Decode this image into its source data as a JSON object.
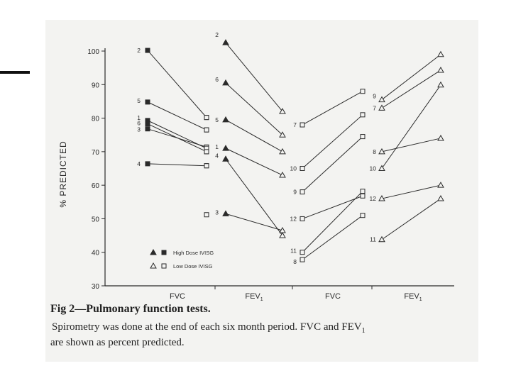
{
  "chart_data": {
    "type": "line",
    "ylabel": "% PREDICTED",
    "ylim": [
      30,
      100
    ],
    "yticks": [
      30,
      40,
      50,
      60,
      70,
      80,
      90,
      100
    ],
    "groups": [
      {
        "key": "fvc_high",
        "label": "FVC",
        "marker": "square",
        "open": false,
        "series": [
          {
            "name": "2",
            "values": [
              100.2,
              80.2
            ]
          },
          {
            "name": "5",
            "values": [
              84.8,
              76.5
            ]
          },
          {
            "name": "1",
            "values": [
              79.3,
              71.0
            ]
          },
          {
            "name": "6",
            "values": [
              78.3,
              70.0
            ]
          },
          {
            "name": "3",
            "values": [
              76.8,
              71.4
            ]
          },
          {
            "name": "4",
            "values": [
              66.4,
              65.8
            ]
          }
        ]
      },
      {
        "key": "fvc_low_end",
        "label": "",
        "marker": "square",
        "open": true,
        "series": [
          {
            "name": "",
            "values": [
              80.2
            ]
          },
          {
            "name": "",
            "values": [
              76.5
            ]
          },
          {
            "name": "",
            "values": [
              71.0
            ]
          },
          {
            "name": "",
            "values": [
              70.0
            ]
          },
          {
            "name": "",
            "values": [
              65.8
            ]
          },
          {
            "name": "",
            "values": [
              51.2
            ]
          }
        ]
      },
      {
        "key": "fev1_high",
        "label": "FEV1",
        "marker": "triangle",
        "open": false,
        "series": [
          {
            "name": "2",
            "values": [
              102.5,
              82.0
            ]
          },
          {
            "name": "6",
            "values": [
              90.5,
              75.0
            ]
          },
          {
            "name": "5",
            "values": [
              79.5,
              70.0
            ]
          },
          {
            "name": "1",
            "values": [
              71.0,
              63.0
            ]
          },
          {
            "name": "4",
            "values": [
              67.8,
              45.0
            ]
          },
          {
            "name": "3",
            "values": [
              51.5,
              46.5
            ]
          }
        ]
      },
      {
        "key": "fvc_low",
        "label": "FVC",
        "marker": "square",
        "open": true,
        "series": [
          {
            "name": "7",
            "values": [
              78.0,
              88.0
            ]
          },
          {
            "name": "10",
            "values": [
              65.0,
              81.0
            ]
          },
          {
            "name": "9",
            "values": [
              58.0,
              74.5
            ]
          },
          {
            "name": "12",
            "values": [
              50.0,
              56.8
            ]
          },
          {
            "name": "11",
            "values": [
              40.0,
              58.2
            ]
          },
          {
            "name": "8",
            "values": [
              37.8,
              51.0
            ]
          }
        ]
      },
      {
        "key": "fev1_low",
        "label": "FEV1",
        "marker": "triangle",
        "open": true,
        "series": [
          {
            "name": "9",
            "values": [
              85.5,
              99.0
            ]
          },
          {
            "name": "7",
            "values": [
              83.0,
              94.3
            ]
          },
          {
            "name": "8",
            "values": [
              70.0,
              74.0
            ]
          },
          {
            "name": "10",
            "values": [
              65.0,
              89.9
            ]
          },
          {
            "name": "12",
            "values": [
              56.0,
              60.0
            ]
          },
          {
            "name": "11",
            "values": [
              43.8,
              56.0
            ]
          }
        ]
      }
    ],
    "legend": {
      "placement": "bottom-left",
      "entries": [
        {
          "label": "High Dose IVISG",
          "filled": true
        },
        {
          "label": "Low Dose IVISG",
          "filled": false
        }
      ]
    },
    "grid": false
  },
  "caption": {
    "title": "Fig 2—Pulmonary function tests.",
    "text_line1": "Spirometry was done at the end of each six month period. FVC and FEV",
    "text_sub": "1",
    "text_line2": "are shown as percent predicted."
  }
}
